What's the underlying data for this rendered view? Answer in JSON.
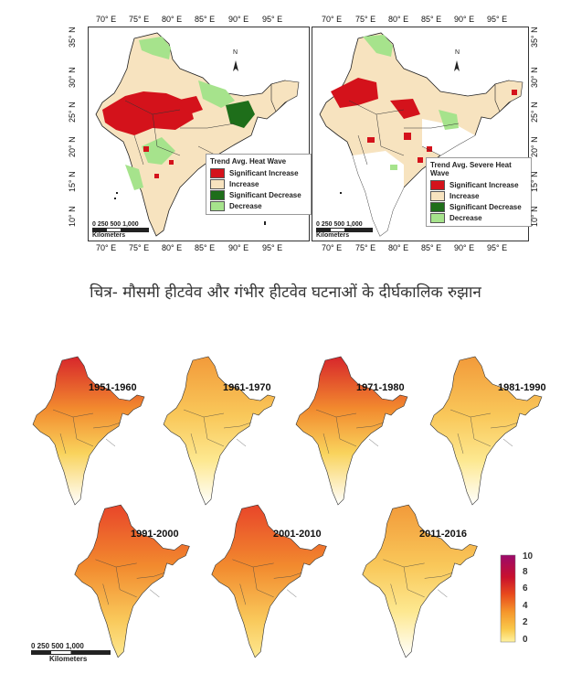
{
  "top_maps": {
    "lon_ticks": [
      "70° E",
      "75° E",
      "80° E",
      "85° E",
      "90° E",
      "95° E"
    ],
    "lat_ticks": [
      "35° N",
      "30° N",
      "25° N",
      "20° N",
      "15° N",
      "10° N"
    ],
    "north_label": "N",
    "scale_numbers": "0  250 500     1,000",
    "scale_unit": "Kilometers",
    "left": {
      "legend_title": "Trend Avg. Heat Wave",
      "legend": [
        {
          "label": "Significant Increase",
          "color": "#d4121b"
        },
        {
          "label": "Increase",
          "color": "#f7e3bf"
        },
        {
          "label": "Significant Decrease",
          "color": "#1e6e1a"
        },
        {
          "label": "Decrease",
          "color": "#a6e38c"
        }
      ]
    },
    "right": {
      "legend_title": "Trend Avg. Severe Heat Wave",
      "legend": [
        {
          "label": "Significant Increase",
          "color": "#d4121b"
        },
        {
          "label": "Increase",
          "color": "#f7e3bf"
        },
        {
          "label": "Significant Decrease",
          "color": "#1e6e1a"
        },
        {
          "label": "Decrease",
          "color": "#a6e38c"
        }
      ]
    }
  },
  "caption": "चित्र- मौसमी हीटवेव और गंभीर हीटवेव घटनाओं के दीर्घकालिक रुझान",
  "decade_maps": {
    "decades": [
      "1951-1960",
      "1961-1970",
      "1971-1980",
      "1981-1990",
      "1991-2000",
      "2001-2010",
      "2011-2016"
    ],
    "colorbar_ticks": [
      "10",
      "8",
      "6",
      "4",
      "2",
      "0"
    ],
    "colorbar_colors": [
      "#9b0a6b",
      "#c8102e",
      "#e84a1c",
      "#f5952b",
      "#f9c84a",
      "#fff2a0"
    ],
    "scale_numbers": "0   250  500      1,000",
    "scale_unit": "Kilometers"
  }
}
